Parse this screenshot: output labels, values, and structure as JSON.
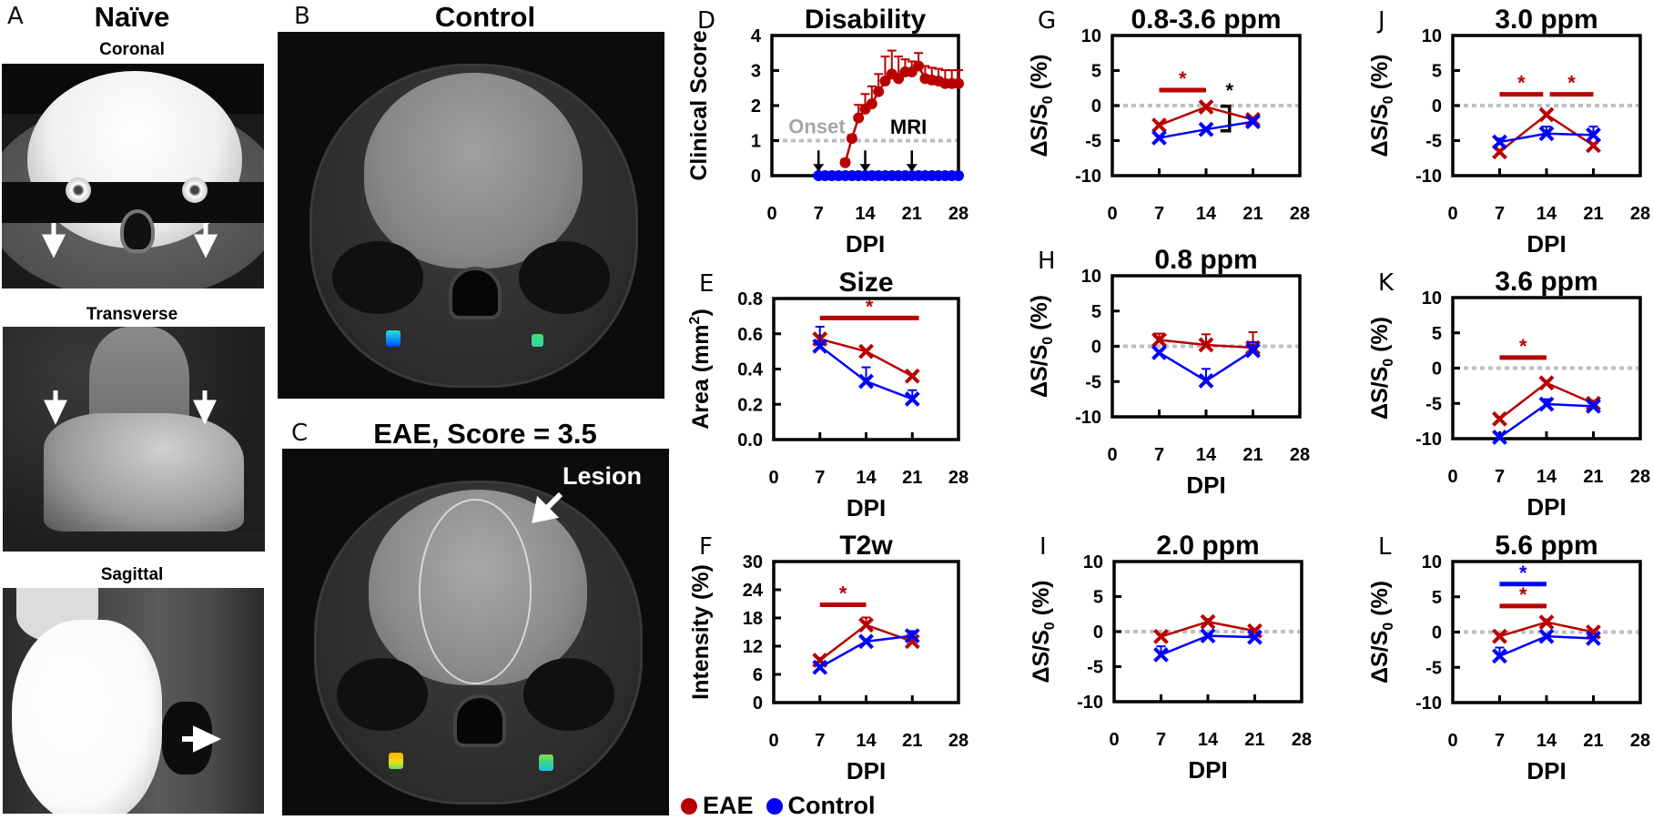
{
  "colors": {
    "eae": "#b80000",
    "control": "#0000ff",
    "reference": "#bfbfbf",
    "axis": "#000000"
  },
  "panel_a": {
    "letter": "A",
    "title": "Naïve",
    "views": [
      "Coronal",
      "Transverse",
      "Sagittal"
    ]
  },
  "panel_b": {
    "letter": "B",
    "title": "Control"
  },
  "panel_c": {
    "letter": "C",
    "title": "EAE, Score = 3.5",
    "annotation": "Lesion"
  },
  "legend": [
    {
      "label": "EAE",
      "color": "#b80000"
    },
    {
      "label": "Control",
      "color": "#0000ff"
    }
  ],
  "chart_data": [
    {
      "panel": "D",
      "type": "line",
      "title": "Disability",
      "xlabel": "DPI",
      "ylabel": {
        "text": "Clinical Score"
      },
      "xlim": [
        0,
        28
      ],
      "xticks": [
        0,
        7,
        14,
        21,
        28
      ],
      "ylim": [
        0,
        4
      ],
      "yticks": [
        0,
        1,
        2,
        3,
        4
      ],
      "marker": "circle",
      "series": [
        {
          "name": "EAE",
          "color": "#b80000",
          "x": [
            11,
            12,
            13,
            14,
            15,
            16,
            17,
            18,
            19,
            20,
            21,
            22,
            23,
            24,
            25,
            26,
            27,
            28
          ],
          "y": [
            0.37,
            1.06,
            1.65,
            1.9,
            2.05,
            2.4,
            2.7,
            2.9,
            2.77,
            2.96,
            2.96,
            3.13,
            2.77,
            2.73,
            2.7,
            2.63,
            2.63,
            2.63
          ],
          "err": [
            0.1,
            0.1,
            0.37,
            0.43,
            0.5,
            0.5,
            0.7,
            0.67,
            0.63,
            0.36,
            0.3,
            0.37,
            0.36,
            0.35,
            0.35,
            0.38,
            0.38,
            0.38
          ]
        },
        {
          "name": "Control",
          "color": "#0000ff",
          "x": [
            7,
            8,
            9,
            10,
            11,
            12,
            13,
            14,
            15,
            16,
            17,
            18,
            19,
            20,
            21,
            22,
            23,
            24,
            25,
            26,
            27,
            28
          ],
          "y": [
            0,
            0,
            0,
            0,
            0,
            0,
            0,
            0,
            0,
            0,
            0,
            0,
            0,
            0,
            0,
            0,
            0,
            0,
            0,
            0,
            0,
            0
          ]
        }
      ],
      "reference_line": {
        "y": 1,
        "label": "Onset"
      },
      "arrows": {
        "x": [
          7,
          14,
          21
        ],
        "label": "MRI"
      }
    },
    {
      "panel": "E",
      "type": "line",
      "title": "Size",
      "xlabel": "DPI",
      "ylabel": {
        "text": "Area (mm",
        "sup": "2",
        "suffix": ")"
      },
      "xlim": [
        0,
        28
      ],
      "xticks": [
        0,
        7,
        14,
        21,
        28
      ],
      "ylim": [
        0,
        0.8
      ],
      "yticks": [
        0,
        0.2,
        0.4,
        0.6,
        0.8
      ],
      "ytick_decimals": 1,
      "marker": "x",
      "series": [
        {
          "name": "EAE",
          "color": "#b80000",
          "x": [
            7,
            14,
            21
          ],
          "y": [
            0.57,
            0.5,
            0.36
          ],
          "err": [
            0.02,
            0.01,
            0.01
          ]
        },
        {
          "name": "Control",
          "color": "#0000ff",
          "x": [
            7,
            14,
            21
          ],
          "y": [
            0.53,
            0.33,
            0.23
          ],
          "err": [
            0.11,
            0.08,
            0.05
          ]
        }
      ],
      "significance": [
        {
          "x": [
            7,
            22
          ],
          "y": 0.69,
          "color": "#b80000",
          "label": "*"
        }
      ]
    },
    {
      "panel": "F",
      "type": "line",
      "title": "T2w",
      "xlabel": "DPI",
      "ylabel": {
        "text": "Intensity (%)"
      },
      "xlim": [
        0,
        28
      ],
      "xticks": [
        0,
        7,
        14,
        21,
        28
      ],
      "ylim": [
        0,
        30
      ],
      "yticks": [
        0,
        6,
        12,
        18,
        24,
        30
      ],
      "marker": "x",
      "series": [
        {
          "name": "EAE",
          "color": "#b80000",
          "x": [
            7,
            14,
            21
          ],
          "y": [
            9.0,
            16.5,
            13.0
          ],
          "err": [
            0.5,
            1.6,
            0.5
          ]
        },
        {
          "name": "Control",
          "color": "#0000ff",
          "x": [
            7,
            14,
            21
          ],
          "y": [
            7.5,
            13.0,
            14.2
          ],
          "err": [
            0.5,
            0.5,
            1.0
          ]
        }
      ],
      "significance": [
        {
          "x": [
            7,
            14
          ],
          "y": 20.8,
          "color": "#b80000",
          "label": "*"
        }
      ]
    },
    {
      "panel": "G",
      "type": "line",
      "title": "0.8-3.6 ppm",
      "xlabel": "",
      "ylabel": {
        "text": "ΔS/S",
        "sub": "0",
        "suffix": " (%)"
      },
      "xlim": [
        0,
        28
      ],
      "xticks": [
        0,
        7,
        14,
        21,
        28
      ],
      "ylim": [
        -10,
        10
      ],
      "yticks": [
        -10,
        -5,
        0,
        5,
        10
      ],
      "marker": "x",
      "zero_line": true,
      "series": [
        {
          "name": "EAE",
          "color": "#b80000",
          "x": [
            7,
            14,
            21
          ],
          "y": [
            -2.8,
            -0.2,
            -2.0
          ],
          "err": [
            0.3,
            0.3,
            0.3
          ]
        },
        {
          "name": "Control",
          "color": "#0000ff",
          "x": [
            7,
            14,
            21
          ],
          "y": [
            -4.6,
            -3.4,
            -2.3
          ],
          "err": [
            0.3,
            0.3,
            0.3
          ]
        }
      ],
      "significance": [
        {
          "x": [
            7,
            14
          ],
          "y": 2.2,
          "color": "#b80000",
          "label": "*"
        }
      ],
      "bracket": {
        "x": 17.5,
        "y": [
          -0.1,
          -3.6
        ],
        "color": "#000000",
        "label": "*"
      }
    },
    {
      "panel": "H",
      "type": "line",
      "title": "0.8 ppm",
      "xlabel": "DPI",
      "ylabel": {
        "text": "ΔS/S",
        "sub": "0",
        "suffix": " (%)"
      },
      "xlim": [
        0,
        28
      ],
      "xticks": [
        0,
        7,
        14,
        21,
        28
      ],
      "ylim": [
        -10,
        10
      ],
      "yticks": [
        -10,
        -5,
        0,
        5,
        10
      ],
      "marker": "x",
      "zero_line": true,
      "series": [
        {
          "name": "EAE",
          "color": "#b80000",
          "x": [
            7,
            14,
            21
          ],
          "y": [
            0.9,
            0.2,
            -0.2
          ],
          "err": [
            0.9,
            1.5,
            2.2
          ]
        },
        {
          "name": "Control",
          "color": "#0000ff",
          "x": [
            7,
            14,
            21
          ],
          "y": [
            -0.9,
            -4.9,
            -0.6
          ],
          "err": [
            0.3,
            1.7,
            1.2
          ]
        }
      ]
    },
    {
      "panel": "I",
      "type": "line",
      "title": "2.0 ppm",
      "xlabel": "DPI",
      "ylabel": {
        "text": "ΔS/S",
        "sub": "0",
        "suffix": " (%)"
      },
      "xlim": [
        0,
        28
      ],
      "xticks": [
        0,
        7,
        14,
        21,
        28
      ],
      "ylim": [
        -10,
        10
      ],
      "yticks": [
        -10,
        -5,
        0,
        5,
        10
      ],
      "marker": "x",
      "zero_line": true,
      "series": [
        {
          "name": "EAE",
          "color": "#b80000",
          "x": [
            7,
            14,
            21
          ],
          "y": [
            -0.7,
            1.4,
            0.1
          ],
          "err": [
            0.3,
            0.4,
            0.3
          ]
        },
        {
          "name": "Control",
          "color": "#0000ff",
          "x": [
            7,
            14,
            21
          ],
          "y": [
            -3.3,
            -0.6,
            -0.8
          ],
          "err": [
            1.2,
            0.2,
            0.2
          ]
        }
      ]
    },
    {
      "panel": "J",
      "type": "line",
      "title": "3.0 ppm",
      "xlabel": "DPI",
      "ylabel": {
        "text": "ΔS/S",
        "sub": "0",
        "suffix": " (%)"
      },
      "xlim": [
        0,
        28
      ],
      "xticks": [
        0,
        7,
        14,
        21,
        28
      ],
      "ylim": [
        -10,
        10
      ],
      "yticks": [
        -10,
        -5,
        0,
        5,
        10
      ],
      "marker": "x",
      "zero_line": true,
      "series": [
        {
          "name": "EAE",
          "color": "#b80000",
          "x": [
            7,
            14,
            21
          ],
          "y": [
            -6.6,
            -1.3,
            -5.7
          ],
          "err": [
            0.3,
            0.3,
            0.3
          ]
        },
        {
          "name": "Control",
          "color": "#0000ff",
          "x": [
            7,
            14,
            21
          ],
          "y": [
            -5.2,
            -4.0,
            -4.2
          ],
          "err": [
            0.5,
            1.0,
            1.2
          ]
        }
      ],
      "significance": [
        {
          "x": [
            7,
            13.5
          ],
          "y": 1.6,
          "color": "#b80000",
          "label": "*"
        },
        {
          "x": [
            14.5,
            21
          ],
          "y": 1.6,
          "color": "#b80000",
          "label": "*"
        }
      ]
    },
    {
      "panel": "K",
      "type": "line",
      "title": "3.6 ppm",
      "xlabel": "DPI",
      "ylabel": {
        "text": "ΔS/S",
        "sub": "0",
        "suffix": " (%)"
      },
      "xlim": [
        0,
        28
      ],
      "xticks": [
        0,
        7,
        14,
        21,
        28
      ],
      "ylim": [
        -10,
        10
      ],
      "yticks": [
        -10,
        -5,
        0,
        5,
        10
      ],
      "marker": "x",
      "zero_line": true,
      "series": [
        {
          "name": "EAE",
          "color": "#b80000",
          "x": [
            7,
            14,
            21
          ],
          "y": [
            -7.2,
            -2.1,
            -5.0
          ],
          "err": [
            0.3,
            0.3,
            0.4
          ]
        },
        {
          "name": "Control",
          "color": "#0000ff",
          "x": [
            7,
            14,
            21
          ],
          "y": [
            -9.8,
            -5.1,
            -5.4
          ],
          "err": [
            0.5,
            0.7,
            0.5
          ]
        }
      ],
      "significance": [
        {
          "x": [
            7,
            14
          ],
          "y": 1.5,
          "color": "#b80000",
          "label": "*"
        }
      ]
    },
    {
      "panel": "L",
      "type": "line",
      "title": "5.6 ppm",
      "xlabel": "DPI",
      "ylabel": {
        "text": "ΔS/S",
        "sub": "0",
        "suffix": " (%)"
      },
      "xlim": [
        0,
        28
      ],
      "xticks": [
        0,
        7,
        14,
        21,
        28
      ],
      "ylim": [
        -10,
        10
      ],
      "yticks": [
        -10,
        -5,
        0,
        5,
        10
      ],
      "marker": "x",
      "zero_line": true,
      "series": [
        {
          "name": "EAE",
          "color": "#b80000",
          "x": [
            7,
            14,
            21
          ],
          "y": [
            -0.6,
            1.4,
            0.0
          ],
          "err": [
            0.3,
            0.4,
            0.3
          ]
        },
        {
          "name": "Control",
          "color": "#0000ff",
          "x": [
            7,
            14,
            21
          ],
          "y": [
            -3.4,
            -0.6,
            -0.9
          ],
          "err": [
            1.2,
            0.2,
            0.2
          ]
        }
      ],
      "significance": [
        {
          "x": [
            7,
            14
          ],
          "y": 6.8,
          "color": "#0000ff",
          "label": "*"
        },
        {
          "x": [
            7,
            14
          ],
          "y": 3.7,
          "color": "#b80000",
          "label": "*"
        }
      ]
    }
  ]
}
